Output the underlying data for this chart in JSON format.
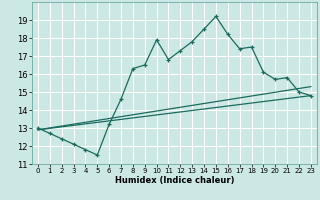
{
  "title": "",
  "xlabel": "Humidex (Indice chaleur)",
  "bg_color": "#cce8e4",
  "grid_color": "#ffffff",
  "line_color": "#1a6b5e",
  "x_main": [
    0,
    1,
    2,
    3,
    4,
    5,
    6,
    7,
    8,
    9,
    10,
    11,
    12,
    13,
    14,
    15,
    16,
    17,
    18,
    19,
    20,
    21,
    22,
    23
  ],
  "y_main": [
    13.0,
    12.7,
    12.4,
    12.1,
    11.8,
    11.5,
    13.2,
    14.6,
    16.3,
    16.5,
    17.9,
    16.8,
    17.3,
    17.8,
    18.5,
    19.2,
    18.2,
    17.4,
    17.5,
    16.1,
    15.7,
    15.8,
    15.0,
    14.8
  ],
  "line1_x": [
    0,
    23
  ],
  "line1_y": [
    12.9,
    15.3
  ],
  "line2_x": [
    0,
    23
  ],
  "line2_y": [
    12.9,
    14.8
  ],
  "ylim": [
    11,
    20
  ],
  "xlim": [
    -0.5,
    23.5
  ],
  "yticks": [
    11,
    12,
    13,
    14,
    15,
    16,
    17,
    18,
    19
  ],
  "xticks": [
    0,
    1,
    2,
    3,
    4,
    5,
    6,
    7,
    8,
    9,
    10,
    11,
    12,
    13,
    14,
    15,
    16,
    17,
    18,
    19,
    20,
    21,
    22,
    23
  ]
}
